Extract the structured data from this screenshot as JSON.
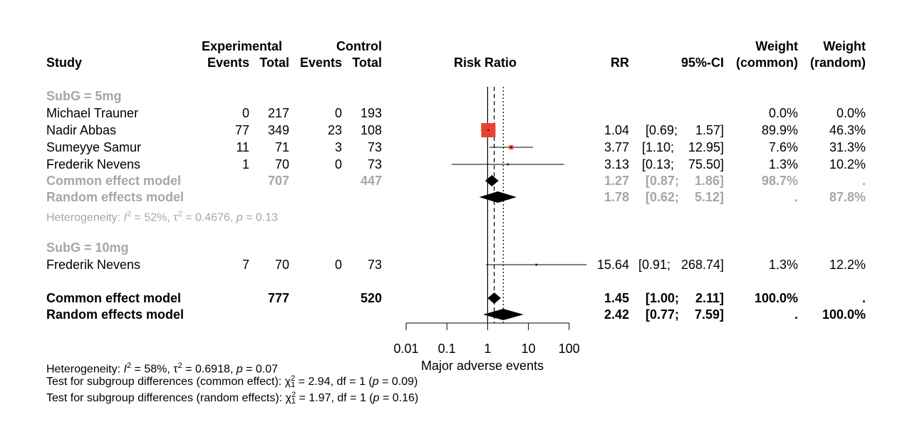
{
  "header": {
    "study": "Study",
    "experimental": "Experimental",
    "control": "Control",
    "events": "Events",
    "total": "Total",
    "risk_ratio": "Risk Ratio",
    "rr": "RR",
    "ci": "95%-CI",
    "weight": "Weight",
    "common": "(common)",
    "random": "(random)"
  },
  "groups": [
    {
      "label": "SubG = 5mg",
      "heterogeneity": {
        "prefix": "Heterogeneity: ",
        "I": "I",
        "i2_value": " = 52%, ",
        "tau": "τ",
        "tau2_value": " = 0.4676, ",
        "p": "p",
        "p_value": " = 0.13"
      }
    },
    {
      "label": "SubG = 10mg"
    }
  ],
  "rows": [
    {
      "study": "Michael Trauner",
      "e_events": "0",
      "e_total": "217",
      "c_events": "0",
      "c_total": "193",
      "rr": "",
      "ci_low": "",
      "ci_high": "",
      "w_common": "0.0%",
      "w_random": "0.0%"
    },
    {
      "study": "Nadir Abbas",
      "e_events": "77",
      "e_total": "349",
      "c_events": "23",
      "c_total": "108",
      "rr": "1.04",
      "ci_low": "[0.69;",
      "ci_high": "1.57]",
      "w_common": "89.9%",
      "w_random": "46.3%"
    },
    {
      "study": "Sumeyye Samur",
      "e_events": "11",
      "e_total": "71",
      "c_events": "3",
      "c_total": "73",
      "rr": "3.77",
      "ci_low": "[1.10;",
      "ci_high": "12.95]",
      "w_common": "7.6%",
      "w_random": "31.3%"
    },
    {
      "study": "Frederik Nevens",
      "e_events": "1",
      "e_total": "70",
      "c_events": "0",
      "c_total": "73",
      "rr": "3.13",
      "ci_low": "[0.13;",
      "ci_high": "75.50]",
      "w_common": "1.3%",
      "w_random": "10.2%"
    },
    {
      "study": "Frederik Nevens",
      "e_events": "7",
      "e_total": "70",
      "c_events": "0",
      "c_total": "73",
      "rr": "15.64",
      "ci_low": "[0.91;",
      "ci_high": "268.74]",
      "w_common": "1.3%",
      "w_random": "12.2%"
    }
  ],
  "subgroup_models": [
    {
      "label": "Common effect model",
      "e_total": "707",
      "c_total": "447",
      "rr": "1.27",
      "ci_low": "[0.87;",
      "ci_high": "1.86]",
      "w_common": "98.7%",
      "w_random": "."
    },
    {
      "label": "Random effects model",
      "rr": "1.78",
      "ci_low": "[0.62;",
      "ci_high": "5.12]",
      "w_common": ".",
      "w_random": "87.8%"
    }
  ],
  "overall_models": [
    {
      "label": "Common effect model",
      "e_total": "777",
      "c_total": "520",
      "rr": "1.45",
      "ci_low": "[1.00;",
      "ci_high": "2.11]",
      "w_common": "100.0%",
      "w_random": "."
    },
    {
      "label": "Random effects model",
      "rr": "2.42",
      "ci_low": "[0.77;",
      "ci_high": "7.59]",
      "w_common": ".",
      "w_random": "100.0%"
    }
  ],
  "footer": {
    "het": {
      "prefix": "Heterogeneity: ",
      "I": "I",
      "i2_value": " = 58%, ",
      "tau": "τ",
      "tau2_value": " = 0.6918, ",
      "p": "p",
      "p_value": " = 0.07"
    },
    "test_common": {
      "prefix": "Test for subgroup differences (common effect): ",
      "chi": "χ",
      "value": " = 2.94, df = 1 (",
      "p": "p",
      "p_value": " = 0.09)"
    },
    "test_random": {
      "prefix": "Test for subgroup differences (random effects): ",
      "chi": "χ",
      "value": " = 1.97, df = 1 (",
      "p": "p",
      "p_value": " = 0.16)"
    },
    "sup2": "2",
    "sub1": "1"
  },
  "chart_data": {
    "type": "forest",
    "xlabel": "Major adverse events",
    "x_scale": "log",
    "xlim": [
      0.01,
      100
    ],
    "x_ticks": [
      0.01,
      0.1,
      1,
      10,
      100
    ],
    "x_tick_labels": [
      "0.01",
      "0.1",
      "1",
      "10",
      "100"
    ],
    "reference_line": 1,
    "common_effect_line": 1.45,
    "random_effect_line": 2.42,
    "studies": [
      {
        "study": "Michael Trauner",
        "rr": null,
        "lower": null,
        "upper": null,
        "weight_common": 0.0
      },
      {
        "study": "Nadir Abbas",
        "rr": 1.04,
        "lower": 0.69,
        "upper": 1.57,
        "weight_common": 89.9
      },
      {
        "study": "Sumeyye Samur",
        "rr": 3.77,
        "lower": 1.1,
        "upper": 12.95,
        "weight_common": 7.6
      },
      {
        "study": "Frederik Nevens",
        "rr": 3.13,
        "lower": 0.13,
        "upper": 75.5,
        "weight_common": 1.3
      },
      {
        "study": "Frederik Nevens",
        "rr": 15.64,
        "lower": 0.91,
        "upper": 268.74,
        "weight_common": 1.3
      }
    ],
    "diamonds": [
      {
        "model": "subgroup common effect",
        "rr": 1.27,
        "lower": 0.87,
        "upper": 1.86
      },
      {
        "model": "subgroup random effects",
        "rr": 1.78,
        "lower": 0.62,
        "upper": 5.12
      },
      {
        "model": "overall common effect",
        "rr": 1.45,
        "lower": 1.0,
        "upper": 2.11
      },
      {
        "model": "overall random effects",
        "rr": 2.42,
        "lower": 0.77,
        "upper": 7.59
      }
    ],
    "colors": {
      "square": "#e8432e",
      "group_label": "#a6a6a6"
    }
  }
}
